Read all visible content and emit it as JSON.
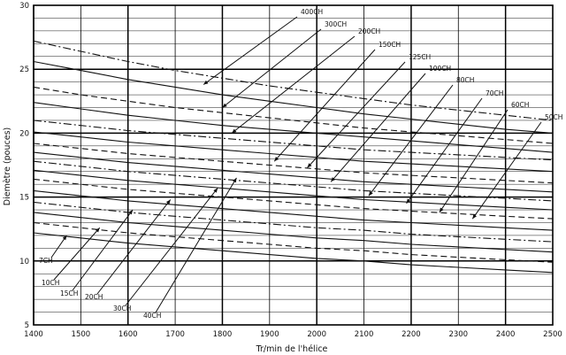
{
  "chart_data": {
    "type": "line",
    "title": "",
    "xlabel": "Tr/min de l'hélice",
    "ylabel": "Diemètre (pouces)",
    "xlim": [
      1400,
      2500
    ],
    "ylim": [
      5,
      30
    ],
    "x_ticks": [
      "1400",
      "1500",
      "1600",
      "1700",
      "1800",
      "1900",
      "2000",
      "2100",
      "2200",
      "2300",
      "2400",
      "2500"
    ],
    "y_ticks": [
      "5",
      "10",
      "15",
      "20",
      "25",
      "30"
    ],
    "grid": true,
    "x": [
      1400,
      1500,
      1600,
      1700,
      1800,
      1900,
      2000,
      2100,
      2200,
      2300,
      2400,
      2500
    ],
    "series": [
      {
        "name": "7CH",
        "style": "solid",
        "values": [
          12.2,
          11.8,
          11.4,
          11.1,
          10.8,
          10.5,
          10.2,
          10.0,
          9.7,
          9.5,
          9.3,
          9.1
        ]
      },
      {
        "name": "10CH",
        "style": "dashed",
        "values": [
          13.0,
          12.6,
          12.2,
          11.9,
          11.6,
          11.3,
          11.0,
          10.8,
          10.5,
          10.3,
          10.1,
          9.9
        ]
      },
      {
        "name": "15CH",
        "style": "solid",
        "values": [
          13.8,
          13.4,
          13.0,
          12.7,
          12.4,
          12.1,
          11.8,
          11.6,
          11.3,
          11.1,
          10.9,
          10.7
        ]
      },
      {
        "name": "20CH",
        "style": "dashdot",
        "values": [
          14.6,
          14.2,
          13.8,
          13.5,
          13.2,
          12.9,
          12.6,
          12.4,
          12.1,
          11.9,
          11.7,
          11.5
        ]
      },
      {
        "name": "30CH",
        "style": "solid",
        "values": [
          15.5,
          15.1,
          14.7,
          14.4,
          14.1,
          13.8,
          13.5,
          13.2,
          13.0,
          12.8,
          12.6,
          12.4
        ]
      },
      {
        "name": "40CH",
        "style": "dashed",
        "values": [
          16.4,
          16.0,
          15.6,
          15.3,
          15.0,
          14.7,
          14.4,
          14.1,
          13.9,
          13.7,
          13.5,
          13.3
        ]
      },
      {
        "name": "50CH",
        "style": "solid",
        "values": [
          17.1,
          16.7,
          16.3,
          16.0,
          15.7,
          15.4,
          15.1,
          14.8,
          14.6,
          14.4,
          14.2,
          14.0
        ]
      },
      {
        "name": "60CH",
        "style": "dashdot",
        "values": [
          17.8,
          17.4,
          17.0,
          16.7,
          16.4,
          16.1,
          15.8,
          15.5,
          15.3,
          15.1,
          14.9,
          14.7
        ]
      },
      {
        "name": "70CH",
        "style": "solid",
        "values": [
          18.5,
          18.1,
          17.7,
          17.4,
          17.1,
          16.8,
          16.5,
          16.2,
          16.0,
          15.8,
          15.6,
          15.4
        ]
      },
      {
        "name": "80CH",
        "style": "dashed",
        "values": [
          19.2,
          18.8,
          18.4,
          18.1,
          17.8,
          17.5,
          17.2,
          16.9,
          16.7,
          16.5,
          16.3,
          16.1
        ]
      },
      {
        "name": "100CH",
        "style": "solid",
        "values": [
          20.1,
          19.7,
          19.3,
          19.0,
          18.7,
          18.4,
          18.1,
          17.8,
          17.6,
          17.4,
          17.2,
          17.0
        ]
      },
      {
        "name": "125CH",
        "style": "dashdot",
        "values": [
          21.0,
          20.6,
          20.2,
          19.9,
          19.6,
          19.3,
          19.0,
          18.7,
          18.5,
          18.3,
          18.1,
          17.9
        ]
      },
      {
        "name": "150CH",
        "style": "solid",
        "values": [
          22.4,
          21.9,
          21.4,
          21.0,
          20.6,
          20.3,
          20.0,
          19.7,
          19.4,
          19.1,
          18.8,
          18.5
        ]
      },
      {
        "name": "200CH",
        "style": "dashed",
        "values": [
          23.6,
          23.0,
          22.5,
          22.0,
          21.6,
          21.2,
          20.8,
          20.4,
          20.1,
          19.8,
          19.5,
          19.2
        ]
      },
      {
        "name": "300CH",
        "style": "solid",
        "values": [
          25.6,
          24.9,
          24.2,
          23.6,
          23.0,
          22.5,
          22.0,
          21.5,
          21.1,
          20.7,
          20.3,
          20.0
        ]
      },
      {
        "name": "400CH",
        "style": "dashdot",
        "values": [
          27.2,
          26.4,
          25.6,
          24.9,
          24.3,
          23.7,
          23.2,
          22.7,
          22.2,
          21.8,
          21.4,
          21.0
        ]
      }
    ],
    "callouts": [
      {
        "label": "7CH",
        "arrow_to": [
          1470,
          12.0
        ]
      },
      {
        "label": "10CH",
        "arrow_to": [
          1540,
          12.6
        ]
      },
      {
        "label": "15CH",
        "arrow_to": [
          1610,
          14.0
        ]
      },
      {
        "label": "20CH",
        "arrow_to": [
          1690,
          14.8
        ]
      },
      {
        "label": "30CH",
        "arrow_to": [
          1790,
          15.7
        ]
      },
      {
        "label": "40CH",
        "arrow_to": [
          1830,
          16.5
        ]
      },
      {
        "label": "400CH",
        "arrow_to": [
          1760,
          23.8
        ]
      },
      {
        "label": "300CH",
        "arrow_to": [
          1800,
          22.0
        ]
      },
      {
        "label": "200CH",
        "arrow_to": [
          1820,
          20.0
        ]
      },
      {
        "label": "150CH",
        "arrow_to": [
          1910,
          17.8
        ]
      },
      {
        "label": "125CH",
        "arrow_to": [
          1980,
          17.3
        ]
      },
      {
        "label": "100CH",
        "arrow_to": [
          2030,
          16.2
        ]
      },
      {
        "label": "80CH",
        "arrow_to": [
          2110,
          15.1
        ]
      },
      {
        "label": "70CH",
        "arrow_to": [
          2190,
          14.5
        ]
      },
      {
        "label": "60CH",
        "arrow_to": [
          2260,
          13.8
        ]
      },
      {
        "label": "50CH",
        "arrow_to": [
          2330,
          13.3
        ]
      }
    ]
  }
}
